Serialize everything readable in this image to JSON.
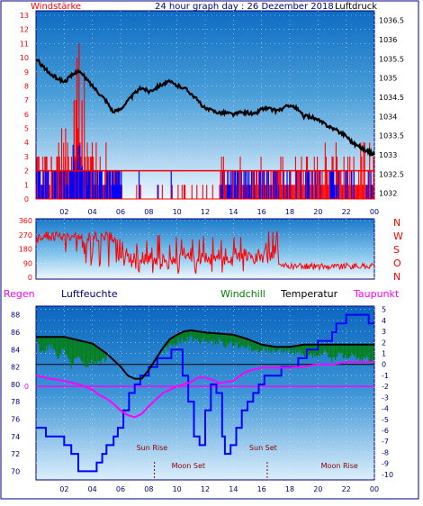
{
  "header": {
    "left_label": "Windstärke",
    "title": "24 hour graph day : 26 Dezember 2018",
    "right_label": "Luftdruck"
  },
  "colors": {
    "wind": "#ff0000",
    "gust": "#0000ff",
    "pressure": "#000000",
    "direction": "#ff0000",
    "humidity": "#0000ff",
    "windchill": "#008000",
    "temperature": "#000000",
    "dewpoint": "#ff00ff",
    "regen": "#ff00ff",
    "sun": "#8b0000",
    "moon": "#8b0000",
    "panel_top": "#0066cc",
    "panel_bottom": "#e8f4ff"
  },
  "chart_data": [
    {
      "id": "wind_pressure",
      "type": "line",
      "x_ticks": [
        "02",
        "04",
        "06",
        "08",
        "10",
        "12",
        "14",
        "16",
        "18",
        "20",
        "22",
        "00"
      ],
      "left_axis": {
        "label": "Windstärke",
        "ticks": [
          0,
          1,
          2,
          3,
          4,
          5,
          6,
          7,
          8,
          9,
          10,
          11,
          12,
          13
        ],
        "ylim": [
          0,
          13
        ]
      },
      "right_axis": {
        "label": "Luftdruck",
        "ticks": [
          1032,
          1032.5,
          1033,
          1033.5,
          1034,
          1034.5,
          1035,
          1035.5,
          1036,
          1036.5
        ],
        "ylim": [
          1031.85,
          1036.75
        ]
      },
      "series": [
        {
          "name": "Luftdruck",
          "axis": "right",
          "x": [
            0,
            0.5,
            1,
            1.5,
            2,
            2.5,
            3,
            3.5,
            4,
            4.5,
            5,
            5.5,
            6,
            6.5,
            7,
            7.5,
            8,
            8.5,
            9,
            9.5,
            10,
            10.5,
            11,
            11.5,
            12,
            12.5,
            13,
            13.5,
            14,
            14.5,
            15,
            15.5,
            16,
            16.5,
            17,
            17.5,
            18,
            18.5,
            19,
            19.5,
            20,
            20.5,
            21,
            21.5,
            22,
            22.5,
            23,
            23.5,
            24
          ],
          "values": [
            1035.5,
            1035.3,
            1035.1,
            1035.0,
            1034.9,
            1035.05,
            1035.2,
            1035.0,
            1034.8,
            1034.6,
            1034.4,
            1034.1,
            1034.2,
            1034.4,
            1034.6,
            1034.75,
            1034.65,
            1034.75,
            1034.85,
            1034.9,
            1034.8,
            1034.75,
            1034.6,
            1034.4,
            1034.2,
            1034.15,
            1034.1,
            1034.1,
            1034.05,
            1034.1,
            1034.1,
            1034.05,
            1034.2,
            1034.2,
            1034.15,
            1034.2,
            1034.3,
            1034.2,
            1034.0,
            1034.0,
            1033.9,
            1033.8,
            1033.7,
            1033.6,
            1033.5,
            1033.3,
            1033.2,
            1033.1,
            1033.0
          ]
        }
      ]
    },
    {
      "id": "wind_direction",
      "type": "line",
      "left_axis": {
        "ticks": [
          0,
          90,
          180,
          270,
          360
        ],
        "ylim": [
          0,
          360
        ]
      },
      "right_labels": [
        "N",
        "W",
        "S",
        "O",
        "N"
      ]
    },
    {
      "id": "temperature_humidity",
      "type": "line",
      "x_ticks": [
        "02",
        "04",
        "06",
        "08",
        "10",
        "12",
        "14",
        "16",
        "18",
        "20",
        "22",
        "00"
      ],
      "legend": [
        "Regen",
        "Luftfeuchte",
        "Windchill",
        "Temperatur",
        "Taupunkt"
      ],
      "left_axis": {
        "ticks": [
          70,
          72,
          74,
          76,
          78,
          80,
          82,
          84,
          86,
          88
        ],
        "ylim": [
          69,
          89
        ]
      },
      "regen_axis": {
        "ticks": [
          0
        ],
        "value": 0
      },
      "right_axis": {
        "ticks": [
          5,
          4,
          3,
          2,
          1,
          0,
          -1,
          -2,
          -3,
          -4,
          -5,
          -6,
          -7,
          -8,
          -9,
          -10
        ],
        "ylim": [
          -10.5,
          5.3
        ]
      },
      "series": [
        {
          "name": "Luftfeuchte",
          "axis": "left",
          "x": [
            0,
            0.4,
            0.7,
            1.5,
            2.0,
            2.5,
            3.0,
            4.0,
            4.3,
            4.7,
            5.0,
            5.5,
            5.8,
            6.2,
            6.6,
            7.0,
            7.4,
            7.8,
            8.0,
            8.6,
            9.2,
            9.6,
            10.0,
            10.4,
            10.8,
            11.2,
            11.6,
            12.0,
            12.4,
            12.8,
            13.2,
            13.4,
            13.8,
            14.2,
            14.6,
            15.0,
            15.4,
            15.8,
            16.2,
            16.8,
            17.4,
            18.0,
            18.6,
            19.2,
            19.6,
            20.0,
            20.6,
            21.0,
            21.3,
            22.0,
            22.6,
            23.2,
            23.6,
            24.0
          ],
          "values": [
            75,
            75,
            74,
            74,
            73,
            72,
            70,
            70,
            71,
            72,
            73,
            74,
            75,
            77,
            79,
            80,
            81,
            81,
            82,
            83,
            83,
            84,
            84,
            81,
            78,
            74,
            73,
            77,
            80,
            79,
            74,
            72,
            73,
            75,
            77,
            78,
            79,
            80,
            81,
            81,
            82,
            82,
            83,
            84,
            84,
            85,
            85,
            86,
            87,
            88,
            88,
            88,
            87,
            87
          ]
        },
        {
          "name": "Temperatur",
          "axis": "right",
          "x": [
            0,
            1,
            2,
            3,
            4,
            5,
            6,
            6.5,
            7,
            7.5,
            8,
            8.5,
            9,
            9.5,
            10,
            10.5,
            11,
            11.5,
            12,
            13,
            14,
            15,
            16,
            17,
            18,
            19,
            20,
            21,
            22,
            23,
            24
          ],
          "values": [
            2.5,
            2.5,
            2.5,
            2.2,
            1.9,
            1.0,
            -0.2,
            -1.0,
            -1.3,
            -1.3,
            -0.5,
            0.5,
            1.5,
            2.3,
            2.7,
            3.0,
            3.1,
            3.0,
            2.9,
            2.8,
            2.7,
            2.3,
            1.8,
            1.6,
            1.6,
            1.8,
            1.8,
            1.8,
            1.8,
            1.8,
            1.8
          ]
        },
        {
          "name": "Windchill",
          "axis": "right",
          "x": [
            0,
            0.5,
            1,
            1.5,
            2,
            2.5,
            3,
            3.5,
            4,
            4.5,
            5,
            9,
            9.5,
            10,
            10.5,
            11,
            11.5,
            12,
            12.5,
            13,
            13.5,
            14,
            14.5,
            15,
            15.5,
            16,
            17,
            18,
            19,
            20,
            20.5,
            21,
            21.5,
            22,
            22.5,
            23,
            23.5,
            24
          ],
          "values": [
            2.3,
            1.3,
            2.1,
            1.0,
            1.6,
            0.2,
            1.2,
            0.1,
            0.5,
            0.5,
            0.8,
            1.5,
            1.9,
            2.4,
            2.5,
            2.7,
            2.4,
            2.6,
            2.2,
            2.5,
            2.0,
            2.2,
            1.8,
            2.0,
            1.5,
            1.6,
            1.5,
            1.5,
            1.2,
            1.0,
            1.4,
            0.8,
            1.2,
            1.0,
            1.3,
            0.5,
            0.9,
            0.5
          ]
        },
        {
          "name": "Taupunkt",
          "axis": "right",
          "x": [
            0,
            1,
            2,
            3,
            4,
            4.5,
            5,
            5.5,
            6,
            6.5,
            7,
            7.5,
            8,
            8.5,
            9,
            10,
            11,
            11.5,
            12,
            12.5,
            13,
            13.5,
            14,
            14.5,
            15,
            16,
            17,
            18,
            19,
            20,
            21,
            22,
            23,
            24
          ],
          "values": [
            -1.0,
            -1.3,
            -1.5,
            -1.8,
            -2.3,
            -2.8,
            -3.1,
            -3.6,
            -4.2,
            -4.6,
            -4.8,
            -4.5,
            -3.8,
            -3.2,
            -2.6,
            -2.0,
            -1.6,
            -1.2,
            -1.2,
            -1.4,
            -1.7,
            -1.6,
            -1.5,
            -1.0,
            -0.6,
            -0.3,
            -0.3,
            -0.3,
            -0.2,
            0.0,
            0.0,
            0.2,
            0.2,
            0.2
          ]
        }
      ],
      "annotations": [
        {
          "label": "Sun Rise",
          "x": 8.4
        },
        {
          "label": "Moon Set",
          "x": 11.4
        },
        {
          "label": "Sun Set",
          "x": 16.4
        },
        {
          "label": "Moon Rise",
          "x": 22.0
        }
      ]
    }
  ]
}
